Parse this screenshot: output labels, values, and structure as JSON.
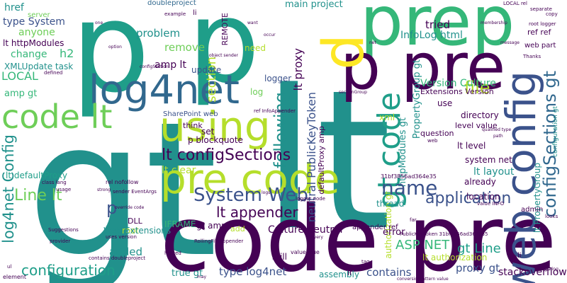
{
  "colors": {
    "dark_purple": "#440154",
    "indigo": "#3b528b",
    "slate_blue": "#31688e",
    "teal": "#21918c",
    "sea_green": "#1f9e89",
    "green": "#35b779",
    "light_green": "#6ece58",
    "lime": "#b5de2b",
    "yellow": "#fde725"
  },
  "words": {
    "gt": "gt",
    "lt": "lt",
    "p_1": "p",
    "p_2": "p",
    "code_pre": "code pre",
    "prep": "prep",
    "p_pre": "p pre",
    "pre_code_1": "pre code",
    "log4net": "log4net",
    "using": "using",
    "code_lt": "code lt",
    "web_config": "web config",
    "gt_code": "gt code",
    "lt_configsections": "lt configSections",
    "system_web": "System Web",
    "name": "name",
    "application": "application",
    "file": "file",
    "configsections_gt": "configSections gt",
    "configuration": "configuration",
    "line_lt": "Line lt",
    "log4net_config": "log4net Config",
    "lt_appender": "lt appender",
    "p_big": "p",
    "asp_net": "ASP NET",
    "gt_line": "gt Line",
    "culture_neutral": "Culture neutral",
    "version_culture": "Version Culture",
    "following": "following",
    "type_system": "type System",
    "lt_httpmodules": "lt httpModules",
    "xmlupdate_task": "XMLUpdate task",
    "local": "LOCAL",
    "amp_gt": "amp gt",
    "problem": "problem",
    "remove": "remove",
    "section": "section",
    "anyone": "anyone",
    "href": "href",
    "change": "change",
    "h2": "h2",
    "infolog_html": "InfoLog html",
    "main_project": "main project",
    "tried": "tried",
    "ref_ref": "ref ref",
    "web_part": "web part",
    "neutral_publickeytoken": "neutral PublicKeyToken",
    "lt_proxy": "lt proxy",
    "amp_lt": "amp lt",
    "update": "update",
    "logger": "logger",
    "need": "need",
    "log": "log",
    "lt_clear": "lt clear",
    "lt_layout": "lt layout",
    "lt_level": "lt level",
    "sharepoint_web": "SharePoint web",
    "p_blockquote": "p blockquote",
    "iframe": "IFRAME",
    "root": "root",
    "add": "add",
    "web_extensions": "Web Extensions",
    "gt_amp": "gt amp",
    "added": "added",
    "true_gt": "true gt",
    "type_log4net": "type log4net",
    "contains": "contains",
    "proxy_gt": "proxy gt",
    "stackoverflow": "stackoverflow",
    "lt_authorization": "lt authorization",
    "error": "error",
    "thread": "thread",
    "already": "already",
    "location": "location",
    "system_net": "system net",
    "level_value": "level value",
    "directory": "directory",
    "use": "use",
    "question": "question",
    "xml": "xml",
    "think": "think",
    "set": "set",
    "dll": "DLL",
    "assembly": "assembly",
    "still": "still",
    "appender_ref": "appender ref",
    "admin": "admin",
    "li_1": "li",
    "li_2": "li",
    "doubleproject": "doubleproject",
    "example": "example",
    "server": "server",
    "local_rel": "LOCAL rel",
    "separate": "separate",
    "copy": "copy",
    "thanks": "Thanks",
    "root_logger": "root logger",
    "membership": "membership",
    "message": "message",
    "remote": "REMOTE",
    "extensions_version": "Extensions Version",
    "propertygroup_gt": "PropertyGroup gt",
    "defaultproxy_amp": "defaultProxy amp",
    "httpmodules_gt": "httpModules gt",
    "lt_propertygroup": "lt PropertyGroup",
    "authorization_gt": "authorization gt",
    "configuration_gt": "configuration gt",
    "lt_defaultproxy": "lt defaultProxy",
    "class_lang": "class lang",
    "usage": "usage",
    "rel_nofollow": "rel nofollow",
    "sender_eventargs": "sender EventArgs",
    "override_code": "override code",
    "suggestions": "Suggestions",
    "provider": "provider",
    "uses_version": "uses version",
    "contains_doubleproject": "contains doubleproject",
    "hosted": "hosted",
    "value_true": "value true",
    "tag": "tag",
    "conversionpattern_value": "conversionPattern value",
    "element": "element",
    "ul": "ul",
    "li_3": "li",
    "value_info": "value INFO",
    "looks": "looks",
    "configuring": "configuring",
    "rollingfileappender": "RollingFileAppender",
    "strong": "strong",
    "logs": "logs",
    "defined": "defined",
    "ref_infoappender": "ref InfoAppender",
    "sectiongroup": "sectionGroup",
    "logger_node": "logger node",
    "publickeytoken_hex": "PublicKeyToken 31bf3856ad364e35",
    "hex_token": "31bf3856ad364e35",
    "web": "web",
    "path": "path",
    "qualified_type": "qualified type",
    "one": "one",
    "want": "want",
    "occur": "occur",
    "net": "net",
    "option": "option",
    "object_sender": "object sender",
    "configsection": "configSection",
    "may": "may",
    "every": "every",
    "far": "far"
  }
}
